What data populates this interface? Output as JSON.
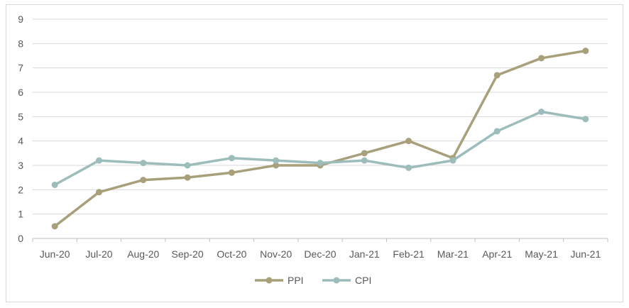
{
  "chart_data": {
    "type": "line",
    "title": "",
    "xlabel": "",
    "ylabel": "",
    "categories": [
      "Jun-20",
      "Jul-20",
      "Aug-20",
      "Sep-20",
      "Oct-20",
      "Nov-20",
      "Dec-20",
      "Jan-21",
      "Feb-21",
      "Mar-21",
      "Apr-21",
      "May-21",
      "Jun-21"
    ],
    "series": [
      {
        "name": "PPI",
        "color": "#A8A07A",
        "values": [
          0.5,
          1.9,
          2.4,
          2.5,
          2.7,
          3.0,
          3.0,
          3.5,
          4.0,
          3.3,
          6.7,
          7.4,
          7.7
        ]
      },
      {
        "name": "CPI",
        "color": "#9DBCBC",
        "values": [
          2.2,
          3.2,
          3.1,
          3.0,
          3.3,
          3.2,
          3.1,
          3.2,
          2.9,
          3.2,
          4.4,
          5.2,
          4.9
        ]
      }
    ],
    "ylim": [
      0,
      9
    ],
    "yticks": [
      "0",
      "1",
      "2",
      "3",
      "4",
      "5",
      "6",
      "7",
      "8",
      "9"
    ],
    "grid": "horizontal",
    "legend": "bottom-center"
  }
}
